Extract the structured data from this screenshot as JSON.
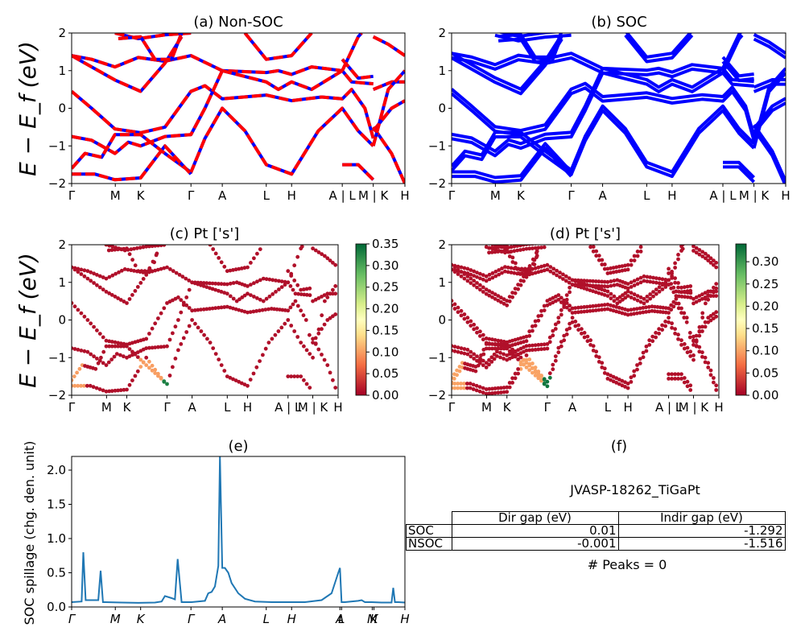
{
  "chart_data": [
    {
      "id": "a",
      "type": "line",
      "title": "(a) Non-SOC",
      "ylabel": "E − E_f (eV)",
      "ylim": [
        -2,
        2
      ],
      "yticks": [
        "2",
        "1",
        "0",
        "−1",
        "−2"
      ],
      "xticks": [
        {
          "label": "Γ",
          "x": 0.0
        },
        {
          "label": "M",
          "x": 0.131
        },
        {
          "label": "K",
          "x": 0.207
        },
        {
          "label": "Γ",
          "x": 0.358
        },
        {
          "label": "A",
          "x": 0.452
        },
        {
          "label": "L",
          "x": 0.584
        },
        {
          "label": "H",
          "x": 0.66
        },
        {
          "label": "A | L",
          "x": 0.812
        },
        {
          "label": "M | K",
          "x": 0.905
        },
        {
          "label": "H",
          "x": 1.0
        }
      ],
      "style": "red-blue dashed (spin up / spin down)",
      "series_colors": [
        "#ff0000",
        "#0000ff"
      ],
      "bands": [
        [
          [
            0,
            1.4
          ],
          [
            0.06,
            1.3
          ],
          [
            0.13,
            1.1
          ],
          [
            0.2,
            1.35
          ],
          [
            0.28,
            1.25
          ],
          [
            0.358,
            1.4
          ],
          [
            0.452,
            1.0
          ],
          [
            0.584,
            0.95
          ],
          [
            0.62,
            1.0
          ],
          [
            0.66,
            0.9
          ],
          [
            0.72,
            1.1
          ],
          [
            0.812,
            1.0
          ]
        ],
        [
          [
            0,
            1.4
          ],
          [
            0.06,
            1.1
          ],
          [
            0.13,
            0.75
          ],
          [
            0.207,
            0.45
          ],
          [
            0.28,
            1.2
          ],
          [
            0.33,
            1.9
          ]
        ],
        [
          [
            0,
            0.45
          ],
          [
            0.06,
            0.0
          ],
          [
            0.13,
            -0.55
          ],
          [
            0.207,
            -0.65
          ],
          [
            0.28,
            -0.5
          ],
          [
            0.358,
            0.45
          ],
          [
            0.4,
            0.6
          ],
          [
            0.452,
            0.25
          ],
          [
            0.584,
            0.35
          ],
          [
            0.66,
            0.2
          ],
          [
            0.75,
            0.3
          ],
          [
            0.812,
            0.25
          ],
          [
            0.84,
            0.5
          ],
          [
            0.88,
            0.0
          ],
          [
            0.905,
            -0.8
          ]
        ],
        [
          [
            0,
            -0.75
          ],
          [
            0.06,
            -0.85
          ],
          [
            0.13,
            -1.2
          ],
          [
            0.17,
            -0.9
          ],
          [
            0.207,
            -1.0
          ],
          [
            0.28,
            -0.75
          ],
          [
            0.358,
            -0.7
          ],
          [
            0.4,
            0.0
          ],
          [
            0.452,
            1.0
          ]
        ],
        [
          [
            0,
            -1.6
          ],
          [
            0.04,
            -1.2
          ],
          [
            0.09,
            -1.3
          ],
          [
            0.13,
            -0.7
          ],
          [
            0.207,
            -0.7
          ],
          [
            0.28,
            -1.2
          ],
          [
            0.358,
            -1.7
          ],
          [
            0.4,
            -0.8
          ],
          [
            0.452,
            0.0
          ],
          [
            0.52,
            -0.6
          ],
          [
            0.584,
            -1.5
          ],
          [
            0.66,
            -1.75
          ],
          [
            0.74,
            -0.6
          ],
          [
            0.812,
            0.0
          ],
          [
            0.86,
            -0.6
          ],
          [
            0.905,
            -1.0
          ]
        ],
        [
          [
            0,
            -1.75
          ],
          [
            0.07,
            -1.75
          ],
          [
            0.13,
            -1.9
          ],
          [
            0.207,
            -1.85
          ],
          [
            0.28,
            -1.0
          ],
          [
            0.358,
            -1.75
          ]
        ],
        [
          [
            0.13,
            2.0
          ],
          [
            0.2,
            1.85
          ],
          [
            0.28,
            1.95
          ],
          [
            0.358,
            2.0
          ]
        ],
        [
          [
            0.14,
            1.85
          ],
          [
            0.207,
            1.9
          ],
          [
            0.25,
            1.3
          ],
          [
            0.3,
            1.3
          ],
          [
            0.33,
            2.0
          ]
        ],
        [
          [
            0.52,
            2.0
          ],
          [
            0.584,
            1.3
          ],
          [
            0.66,
            1.4
          ],
          [
            0.72,
            2.0
          ]
        ],
        [
          [
            0.452,
            1.0
          ],
          [
            0.584,
            0.7
          ],
          [
            0.62,
            0.5
          ],
          [
            0.66,
            0.7
          ],
          [
            0.72,
            0.5
          ],
          [
            0.812,
            1.0
          ],
          [
            0.84,
            0.7
          ],
          [
            0.905,
            0.65
          ]
        ],
        [
          [
            0.812,
            1.3
          ],
          [
            0.86,
            0.8
          ],
          [
            0.905,
            0.85
          ]
        ],
        [
          [
            0.812,
            1.0
          ],
          [
            0.86,
            1.9
          ],
          [
            0.87,
            2.0
          ]
        ],
        [
          [
            0.905,
            1.9
          ],
          [
            0.95,
            1.7
          ],
          [
            1.0,
            1.4
          ]
        ],
        [
          [
            0.905,
            0.5
          ],
          [
            0.96,
            0.7
          ],
          [
            1.0,
            0.7
          ]
        ],
        [
          [
            0.905,
            -0.6
          ],
          [
            0.96,
            0.0
          ],
          [
            1.0,
            0.2
          ]
        ],
        [
          [
            0.905,
            -0.5
          ],
          [
            0.96,
            -1.2
          ],
          [
            1.0,
            -2.0
          ]
        ],
        [
          [
            0.812,
            -1.5
          ],
          [
            0.86,
            -1.5
          ],
          [
            0.905,
            -1.9
          ]
        ],
        [
          [
            0.905,
            -1.0
          ],
          [
            0.95,
            0.5
          ],
          [
            1.0,
            1.0
          ]
        ]
      ]
    },
    {
      "id": "b",
      "type": "line",
      "title": "(b) SOC",
      "ylim": [
        -2,
        2
      ],
      "yticks": [
        "2",
        "1",
        "0",
        "−1",
        "−2"
      ],
      "xticks_ref": "a",
      "style": "solid blue",
      "series_colors": [
        "#0000ff"
      ],
      "bands_ref": "a (with SOC splitting)"
    },
    {
      "id": "c",
      "type": "scatter",
      "title": "(c)  Pt ['s']",
      "ylabel": "E − E_f (eV)",
      "ylim": [
        -2,
        2
      ],
      "yticks": [
        "2",
        "1",
        "0",
        "−1",
        "−2"
      ],
      "xticks": [
        {
          "label": "Γ",
          "x": 0.0
        },
        {
          "label": "M",
          "x": 0.131
        },
        {
          "label": "K",
          "x": 0.207
        },
        {
          "label": "Γ",
          "x": 0.358
        },
        {
          "label": "A",
          "x": 0.452
        },
        {
          "label": "L",
          "x": 0.584
        },
        {
          "label": "H",
          "x": 0.66
        },
        {
          "label": "A | L",
          "x": 0.812
        },
        {
          "label": "M | K",
          "x": 0.905
        },
        {
          "label": "H",
          "x": 1.0
        }
      ],
      "colormap": "RdYlGn",
      "colorbar": {
        "min": 0.0,
        "max": 0.35,
        "ticks": [
          "0.35",
          "0.30",
          "0.25",
          "0.20",
          "0.15",
          "0.10",
          "0.05",
          "0.00"
        ]
      }
    },
    {
      "id": "d",
      "type": "scatter",
      "title": "(d) Pt ['s']",
      "ylim": [
        -2,
        2
      ],
      "yticks": [
        "2",
        "1",
        "0",
        "−1",
        "−2"
      ],
      "xticks_ref": "c",
      "colormap": "RdYlGn",
      "colorbar": {
        "min": 0.0,
        "max": 0.34,
        "ticks": [
          "0.30",
          "0.25",
          "0.20",
          "0.15",
          "0.10",
          "0.05",
          "0.00"
        ]
      }
    },
    {
      "id": "e",
      "type": "line",
      "title": "(e)",
      "ylabel": "SOC spillage (chg. den. unit)",
      "ylim": [
        0,
        2.2
      ],
      "yticks": [
        "0.0",
        "0.5",
        "1.0",
        "1.5",
        "2.0"
      ],
      "xticks": [
        {
          "label": "Γ",
          "x": 0.0
        },
        {
          "label": "M",
          "x": 0.131
        },
        {
          "label": "K",
          "x": 0.207
        },
        {
          "label": "Γ",
          "x": 0.358
        },
        {
          "label": "A",
          "x": 0.452
        },
        {
          "label": "L",
          "x": 0.584
        },
        {
          "label": "H",
          "x": 0.66
        },
        {
          "label": "A",
          "x": 0.805
        },
        {
          "label": "L",
          "x": 0.81
        },
        {
          "label": "M",
          "x": 0.902
        },
        {
          "label": "K",
          "x": 0.907
        },
        {
          "label": "H",
          "x": 1.0
        }
      ],
      "color": "#1f77b4",
      "x": [
        0,
        0.03,
        0.035,
        0.042,
        0.05,
        0.08,
        0.087,
        0.094,
        0.1,
        0.15,
        0.2,
        0.25,
        0.27,
        0.28,
        0.3,
        0.31,
        0.318,
        0.33,
        0.36,
        0.4,
        0.41,
        0.42,
        0.43,
        0.44,
        0.445,
        0.452,
        0.46,
        0.47,
        0.48,
        0.5,
        0.52,
        0.55,
        0.6,
        0.65,
        0.7,
        0.75,
        0.78,
        0.8,
        0.805,
        0.81,
        0.82,
        0.86,
        0.87,
        0.88,
        0.9,
        0.93,
        0.96,
        0.965,
        0.97,
        0.98,
        1.0
      ],
      "y": [
        0.07,
        0.08,
        0.8,
        0.1,
        0.1,
        0.1,
        0.53,
        0.07,
        0.07,
        0.065,
        0.06,
        0.065,
        0.08,
        0.16,
        0.13,
        0.11,
        0.7,
        0.07,
        0.07,
        0.09,
        0.2,
        0.22,
        0.3,
        0.6,
        2.2,
        0.57,
        0.57,
        0.5,
        0.35,
        0.2,
        0.12,
        0.08,
        0.07,
        0.07,
        0.07,
        0.1,
        0.2,
        0.5,
        0.57,
        0.07,
        0.07,
        0.09,
        0.1,
        0.07,
        0.07,
        0.065,
        0.065,
        0.28,
        0.07,
        0.07,
        0.065
      ]
    }
  ],
  "panel_f": {
    "title": "(f)",
    "material": "JVASP-18262_TiGaPt",
    "table": {
      "columns": [
        "",
        "Dir gap (eV)",
        "Indir gap (eV)"
      ],
      "rows": [
        {
          "label": "SOC",
          "dir_gap": "0.01",
          "indir_gap": "-1.292"
        },
        {
          "label": "NSOC",
          "dir_gap": "-0.001",
          "indir_gap": "-1.516"
        }
      ]
    },
    "peaks": "# Peaks = 0"
  }
}
